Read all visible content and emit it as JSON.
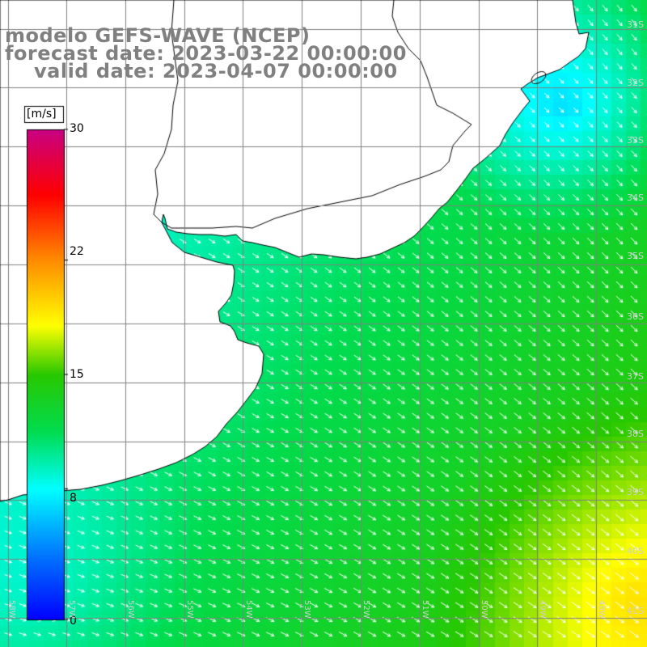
{
  "title": {
    "line1": "modelo GEFS-WAVE (NCEP)",
    "line2": "forecast date: 2023-03-22 00:00:00",
    "line3": "valid date: 2023-04-07 00:00:00"
  },
  "colorbar": {
    "units": "[m/s]",
    "ticks": [
      "30",
      "22",
      "15",
      "8",
      "0"
    ],
    "tick_values": [
      30,
      22,
      15,
      8,
      0
    ],
    "colors": [
      "#0000ff",
      "#00aaff",
      "#00ffff",
      "#00c800",
      "#ffff00",
      "#ff8000",
      "#ff0000",
      "#c00080"
    ]
  },
  "latitude_labels": [
    "31S",
    "32S",
    "33S",
    "34S",
    "35S",
    "36S",
    "37S",
    "38S",
    "39S",
    "40S",
    "41S"
  ],
  "longitude_labels": [
    "58W",
    "57W",
    "56W",
    "55W",
    "54W",
    "53W",
    "52W",
    "51W",
    "50W",
    "49W",
    "48W"
  ],
  "colors": {
    "land": "#ffffff",
    "grid": "#808080",
    "coast": "#000000",
    "arrows": "#ffffff",
    "title": "#808080"
  }
}
